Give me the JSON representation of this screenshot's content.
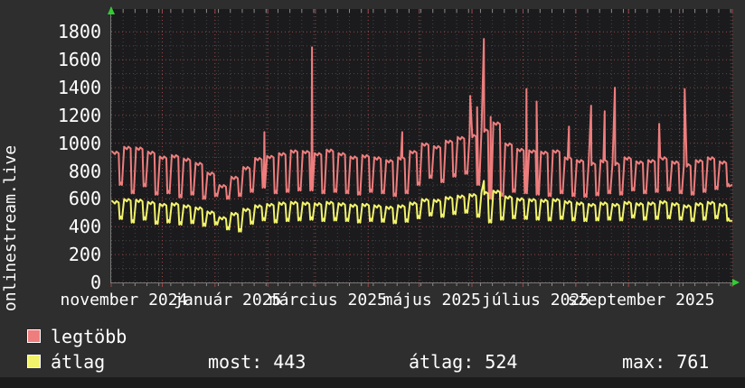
{
  "y_axis_title": "onlinestream.live",
  "colors": {
    "background": "#2e2e2e",
    "plot_background": "#1b1b1d",
    "text": "#ffffff",
    "major_grid": "#a24848",
    "minor_grid": "#555555",
    "axis_arrow": "#33cc33",
    "series_red": "#ee7d7d",
    "series_yellow": "#f2f36b"
  },
  "chart_data": {
    "type": "line",
    "title": "",
    "ylabel": "onlinestream.live",
    "xlabel": "",
    "ylim": [
      0,
      1900
    ],
    "y_major_step": 200,
    "y_minor_step": 100,
    "y_ticks": [
      0,
      200,
      400,
      600,
      800,
      1000,
      1200,
      1400,
      1600,
      1800
    ],
    "x_axis": {
      "range_days": 365,
      "start": "november 2024",
      "end": "október 2025",
      "month_grid_days": [
        0,
        30,
        61,
        92,
        120,
        151,
        181,
        212,
        242,
        273,
        304,
        334,
        365
      ],
      "week_step_days": 7,
      "labels": [
        {
          "label": "november 2024",
          "day": 0
        },
        {
          "label": "január 2025",
          "day": 61
        },
        {
          "label": "március 2025",
          "day": 120
        },
        {
          "label": "május 2025",
          "day": 181
        },
        {
          "label": "július 2025",
          "day": 242
        },
        {
          "label": "szeptember 2025",
          "day": 304
        }
      ]
    },
    "series": [
      {
        "name": "legtöbb",
        "color": "#ee7d7d",
        "weekly_high": [
          940,
          975,
          970,
          940,
          905,
          915,
          890,
          860,
          790,
          700,
          760,
          830,
          895,
          910,
          930,
          950,
          945,
          930,
          955,
          930,
          905,
          915,
          900,
          880,
          900,
          945,
          1000,
          980,
          1020,
          1045,
          1060,
          1100,
          1150,
          1000,
          960,
          950,
          940,
          950,
          900,
          880,
          860,
          880,
          860,
          900,
          870,
          880,
          900,
          870,
          850,
          880,
          900,
          870
        ],
        "weekly_low": [
          700,
          640,
          690,
          630,
          640,
          610,
          630,
          600,
          620,
          600,
          620,
          650,
          680,
          640,
          650,
          660,
          660,
          640,
          650,
          640,
          630,
          650,
          640,
          620,
          640,
          700,
          750,
          720,
          760,
          780,
          700,
          600,
          620,
          650,
          640,
          630,
          620,
          640,
          620,
          615,
          625,
          640,
          630,
          660,
          640,
          650,
          660,
          640,
          630,
          650,
          670,
          690
        ],
        "spikes": [
          [
            90,
            1080
          ],
          [
            118,
            1690
          ],
          [
            171,
            1080
          ],
          [
            211,
            1340
          ],
          [
            215,
            1260
          ],
          [
            219,
            1750
          ],
          [
            223,
            1190
          ],
          [
            244,
            1390
          ],
          [
            250,
            1300
          ],
          [
            269,
            1120
          ],
          [
            282,
            1270
          ],
          [
            290,
            1230
          ],
          [
            296,
            1400
          ],
          [
            322,
            1140
          ],
          [
            337,
            1390
          ]
        ],
        "end_value": 700
      },
      {
        "name": "átlag",
        "color": "#f2f36b",
        "weekly_high": [
          585,
          600,
          595,
          580,
          565,
          570,
          555,
          540,
          510,
          470,
          500,
          530,
          555,
          565,
          575,
          580,
          575,
          570,
          580,
          570,
          560,
          565,
          555,
          545,
          555,
          575,
          600,
          595,
          615,
          625,
          635,
          650,
          660,
          620,
          605,
          600,
          595,
          600,
          585,
          575,
          565,
          575,
          565,
          580,
          570,
          575,
          585,
          570,
          555,
          570,
          580,
          565
        ],
        "weekly_low": [
          455,
          430,
          450,
          420,
          430,
          415,
          425,
          405,
          415,
          380,
          365,
          420,
          445,
          430,
          440,
          445,
          450,
          440,
          445,
          440,
          430,
          440,
          435,
          425,
          435,
          460,
          480,
          470,
          490,
          500,
          470,
          430,
          450,
          460,
          455,
          450,
          445,
          455,
          445,
          440,
          445,
          450,
          445,
          465,
          450,
          455,
          460,
          450,
          440,
          450,
          460,
          443
        ],
        "spikes": [
          [
            219,
            730
          ]
        ],
        "end_value": 443
      }
    ]
  },
  "legend": {
    "items": [
      {
        "label": "legtöbb",
        "color": "#ee7d7d"
      },
      {
        "label": "átlag",
        "color": "#f2f36b"
      }
    ],
    "stats": [
      {
        "text": "most: 443"
      },
      {
        "text": "átlag: 524"
      },
      {
        "text": "max: 761"
      }
    ]
  }
}
